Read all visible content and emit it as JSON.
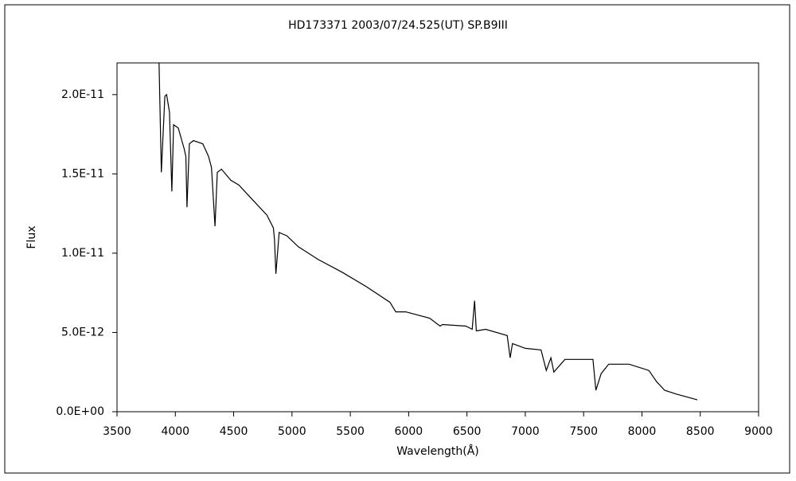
{
  "chart_data": {
    "type": "line",
    "title": "HD173371  2003/07/24.525(UT)  SP.B9III",
    "xlabel": "Wavelength(Å)",
    "ylabel": "Flux",
    "x": [
      3860,
      3880,
      3910,
      3925,
      3950,
      3970,
      3985,
      4025,
      4075,
      4090,
      4100,
      4120,
      4155,
      4235,
      4285,
      4310,
      4340,
      4360,
      4395,
      4475,
      4545,
      4645,
      4785,
      4840,
      4850,
      4862,
      4890,
      4955,
      5055,
      5225,
      5430,
      5635,
      5840,
      5890,
      5975,
      6180,
      6270,
      6290,
      6490,
      6545,
      6565,
      6580,
      6660,
      6845,
      6870,
      6890,
      7000,
      7135,
      7180,
      7220,
      7245,
      7340,
      7580,
      7605,
      7650,
      7715,
      7890,
      8060,
      8125,
      8195,
      8300,
      8475
    ],
    "series": [
      {
        "name": "Flux",
        "color": "#000000",
        "values": [
          2.2e-11,
          1.51e-11,
          1.99e-11,
          2e-11,
          1.89e-11,
          1.39e-11,
          1.81e-11,
          1.79e-11,
          1.66e-11,
          1.61e-11,
          1.29e-11,
          1.69e-11,
          1.71e-11,
          1.69e-11,
          1.61e-11,
          1.54e-11,
          1.17e-11,
          1.51e-11,
          1.53e-11,
          1.46e-11,
          1.43e-11,
          1.35e-11,
          1.24e-11,
          1.16e-11,
          1.09e-11,
          8.7e-12,
          1.13e-11,
          1.11e-11,
          1.04e-11,
          9.6e-12,
          8.8e-12,
          7.9e-12,
          6.9e-12,
          6.3e-12,
          6.3e-12,
          5.9e-12,
          5.4e-12,
          5.5e-12,
          5.4e-12,
          5.2e-12,
          7e-12,
          5.1e-12,
          5.2e-12,
          4.8e-12,
          3.4e-12,
          4.3e-12,
          4e-12,
          3.9e-12,
          2.6e-12,
          3.4e-12,
          2.5e-12,
          3.3e-12,
          3.3e-12,
          1.35e-12,
          2.4e-12,
          3e-12,
          3e-12,
          2.6e-12,
          1.9e-12,
          1.35e-12,
          1.1e-12,
          7.5e-13
        ]
      }
    ],
    "xlim": [
      3500,
      9000
    ],
    "xticks": [
      3500,
      4000,
      4500,
      5000,
      5500,
      6000,
      6500,
      7000,
      7500,
      8000,
      8500,
      9000
    ],
    "ylim": [
      0,
      2.2e-11
    ],
    "yticks": [
      {
        "value": 0,
        "label": "0.0E+00"
      },
      {
        "value": 5e-12,
        "label": "5.0E-12"
      },
      {
        "value": 1e-11,
        "label": "1.0E-11"
      },
      {
        "value": 1.5e-11,
        "label": "1.5E-11"
      },
      {
        "value": 2e-11,
        "label": "2.0E-11"
      }
    ],
    "grid": false
  }
}
